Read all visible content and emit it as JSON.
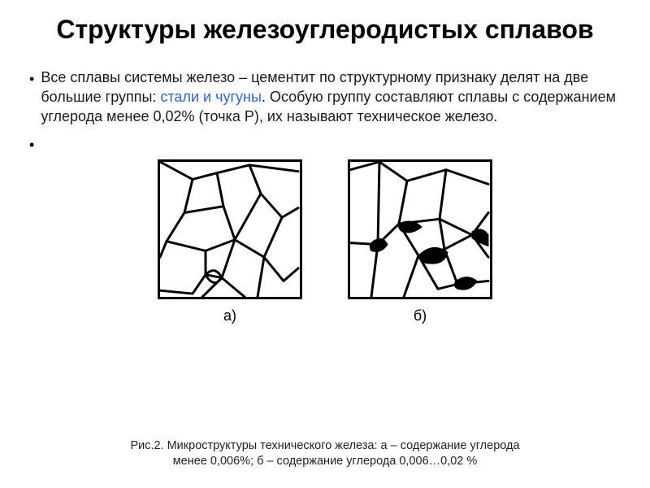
{
  "title": "Структуры железоуглеродистых сплавов",
  "paragraph": {
    "bullet": "•",
    "pre": "Все сплавы системы железо – цементит по структурному признаку делят на две большие группы: ",
    "link": "стали и чугуны",
    "post": ". Особую группу составляют сплавы с содержанием углерода менее 0,02% (точка Р), их называют техническое железо."
  },
  "empty_bullet": "•",
  "figures": {
    "a": {
      "label": "а)",
      "stroke_width": 3,
      "paths": [
        "M0 0 L40 22 L70 14 L110 4 L170 12",
        "M40 22 L30 64 L8 100 L0 120",
        "M70 14 L78 56 L92 98 L76 146 L52 170",
        "M30 64 L78 56",
        "M8 100 L56 112 L92 98",
        "M56 112 L56 142 L40 166 L0 162",
        "M56 142 L76 146",
        "M110 4 L124 40 L150 70 L170 58",
        "M92 98 L124 40",
        "M92 98 L128 120 L150 70",
        "M128 120 L152 150 L170 134",
        "M76 146 L104 170",
        "M128 120 L120 170",
        "M56 142 Q68 130 76 146 Q66 160 56 142"
      ],
      "blobs": []
    },
    "b": {
      "label": "б)",
      "stroke_width": 3,
      "paths": [
        "M0 10 L36 0 L70 24 L118 10 L170 28",
        "M70 24 L60 78 L34 104 L0 102",
        "M36 0 L34 104",
        "M60 78 L110 72 L118 10",
        "M110 72 L150 92 L170 64",
        "M60 78 L84 118 L66 170",
        "M84 118 L116 110 L110 72",
        "M116 110 L150 92",
        "M116 110 L132 154 L170 150",
        "M84 118 L108 160 L132 154",
        "M34 104 L26 170",
        "M150 92 L170 120"
      ],
      "blobs": [
        "M84 118 Q102 100 120 114 Q116 130 98 128 Q86 128 84 118 Z",
        "M60 78 Q76 70 88 82 Q76 92 64 88 Q58 84 60 78 Z",
        "M130 150 Q144 140 156 150 Q148 164 132 160 Q126 156 130 150 Z",
        "M28 100 Q40 92 46 104 Q38 116 26 112 Q22 106 28 100 Z",
        "M150 88 Q162 80 170 92 L170 106 Q158 102 150 96 Z"
      ]
    }
  },
  "caption": "Рис.2. Микроструктуры технического железа: а – содержание углерода менее 0,006%; б – содержание углерода 0,006…0,02 %",
  "colors": {
    "text": "#000000",
    "link": "#3366cc",
    "stroke": "#000000",
    "background": "#ffffff"
  }
}
